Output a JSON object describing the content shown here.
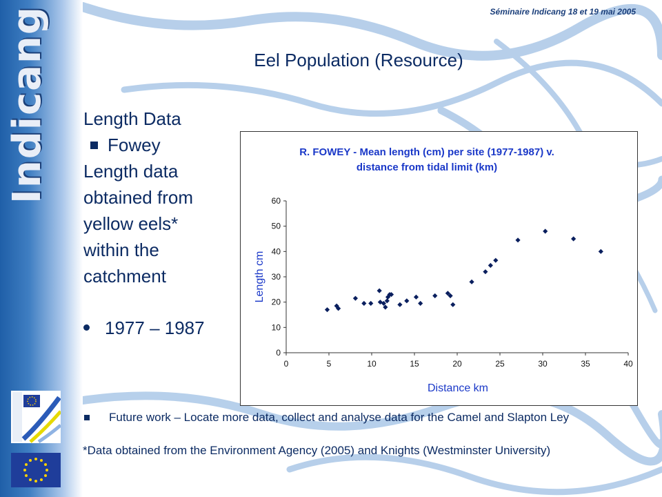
{
  "header": {
    "seminar": "Séminaire Indicang 18 et 19 mai 2005"
  },
  "sidebar": {
    "brand": "Indicang"
  },
  "slide": {
    "title": "Eel Population (Resource)",
    "length_heading": "Length Data",
    "sub_bullet": "Fowey",
    "body_lines": [
      "Length data",
      "obtained from",
      "yellow eels*",
      "within the",
      "catchment"
    ],
    "period": "1977 – 1987",
    "future_work": "Future work – Locate more data, collect and analyse data for the Camel and Slapton Ley",
    "footnote": "*Data obtained from the Environment Agency (2005) and Knights (Westminster University)"
  },
  "colors": {
    "title": "#0c2b63",
    "chart_title": "#1a38c8",
    "marker": "#0a1f5e",
    "sidebar": "#1f5fa8"
  },
  "icons": [
    "interreg-logo",
    "eu-flag-logo"
  ],
  "chart_data": {
    "type": "scatter",
    "title_lines": [
      "R. FOWEY - Mean length (cm) per site (1977-1987) v.",
      "distance from tidal limit (km)"
    ],
    "xlabel": "Distance km",
    "ylabel": "Length cm",
    "xlim": [
      0,
      40
    ],
    "ylim": [
      0,
      60
    ],
    "xticks": [
      0,
      5,
      10,
      15,
      20,
      25,
      30,
      35,
      40
    ],
    "yticks": [
      0,
      10,
      20,
      30,
      40,
      50,
      60
    ],
    "grid": false,
    "points": [
      [
        4.8,
        17
      ],
      [
        5.9,
        18.5
      ],
      [
        6.1,
        17.5
      ],
      [
        8.1,
        21.5
      ],
      [
        9.1,
        19.5
      ],
      [
        9.9,
        19.5
      ],
      [
        10.9,
        24.5
      ],
      [
        11,
        20
      ],
      [
        11.4,
        19.5
      ],
      [
        11.6,
        18
      ],
      [
        11.8,
        20.5
      ],
      [
        11.9,
        22
      ],
      [
        12.1,
        23
      ],
      [
        12.3,
        23
      ],
      [
        13.3,
        19
      ],
      [
        14.1,
        20.5
      ],
      [
        15.2,
        22
      ],
      [
        15.7,
        19.5
      ],
      [
        17.4,
        22.5
      ],
      [
        18.9,
        23.5
      ],
      [
        19.2,
        22.5
      ],
      [
        19.5,
        19
      ],
      [
        21.7,
        28
      ],
      [
        23.3,
        32
      ],
      [
        23.9,
        34.5
      ],
      [
        24.5,
        36.5
      ],
      [
        27.1,
        44.5
      ],
      [
        30.3,
        48
      ],
      [
        33.6,
        45
      ],
      [
        36.8,
        40
      ]
    ]
  }
}
